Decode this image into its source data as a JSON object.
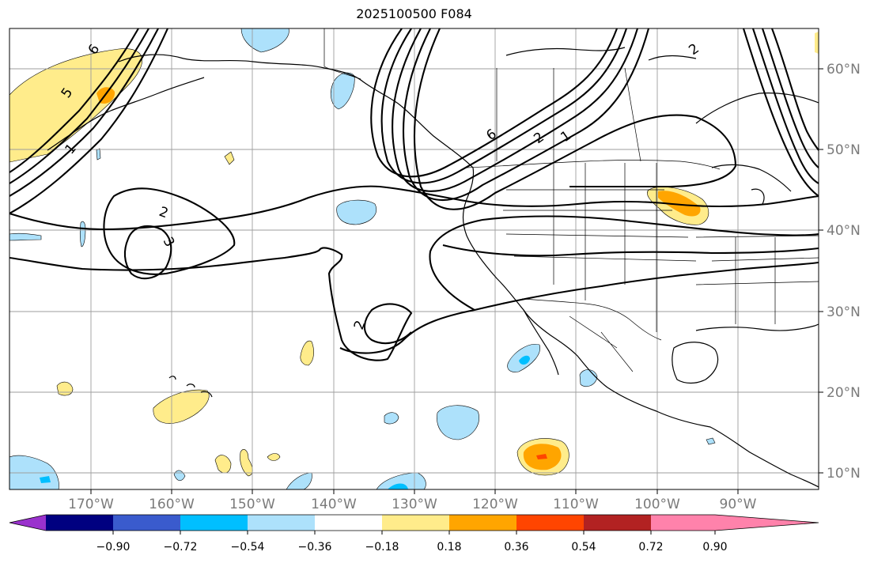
{
  "title": "2025100500 F084",
  "map": {
    "longitude_labels": [
      "170°W",
      "160°W",
      "150°W",
      "140°W",
      "130°W",
      "120°W",
      "110°W",
      "100°W",
      "90°W"
    ],
    "latitude_labels": [
      "60°N",
      "50°N",
      "40°N",
      "30°N",
      "20°N",
      "10°N"
    ],
    "contour_labels": [
      "6",
      "5",
      "1",
      "2",
      "3",
      "2",
      "6",
      "2",
      "1",
      "2"
    ]
  },
  "colorbar": {
    "ticks": [
      "−0.90",
      "−0.72",
      "−0.54",
      "−0.36",
      "−0.18",
      "0.18",
      "0.36",
      "0.54",
      "0.72",
      "0.90"
    ],
    "colors": {
      "under": "#9a32cd",
      "bins": [
        "#000080",
        "#3a5bcd",
        "#00bfff",
        "#ade1fb",
        "#ffffff",
        "#ffec8b",
        "#ffa500",
        "#ff4500",
        "#b22222",
        "#ff82ab"
      ],
      "over": "#ff82ab"
    }
  },
  "colors": {
    "grid": "#9e9e9e",
    "coast": "#000000",
    "contour": "#000000",
    "text_gray": "#7a7a7a"
  }
}
